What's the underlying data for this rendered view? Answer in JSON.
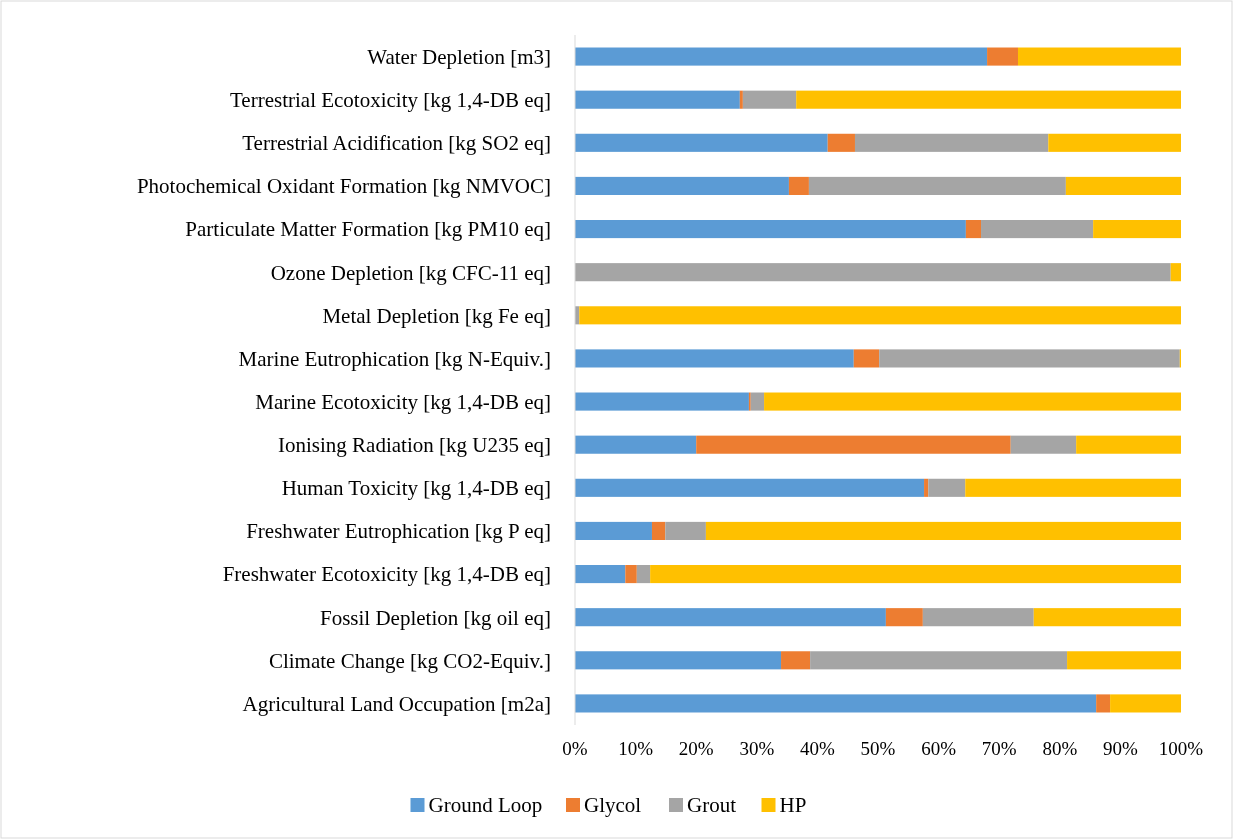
{
  "chart_data": {
    "type": "bar",
    "orientation": "horizontal",
    "stacked": true,
    "categories": [
      "Water Depletion [m3]",
      "Terrestrial Ecotoxicity [kg 1,4-DB eq]",
      "Terrestrial Acidification [kg SO2 eq]",
      "Photochemical Oxidant Formation [kg NMVOC]",
      "Particulate Matter Formation [kg PM10 eq]",
      "Ozone Depletion [kg CFC-11 eq]",
      "Metal Depletion [kg Fe eq]",
      "Marine Eutrophication [kg N-Equiv.]",
      "Marine Ecotoxicity [kg 1,4-DB eq]",
      "Ionising Radiation [kg U235 eq]",
      "Human Toxicity [kg 1,4-DB eq]",
      "Freshwater Eutrophication [kg P eq]",
      "Freshwater Ecotoxicity [kg 1,4-DB eq]",
      "Fossil Depletion [kg oil eq]",
      "Climate Change [kg CO2-Equiv.]",
      "Agricultural Land Occupation [m2a]"
    ],
    "series": [
      {
        "name": "Ground Loop",
        "color": "#5b9bd5",
        "values": [
          68.0,
          27.2,
          41.7,
          35.3,
          64.5,
          0,
          0,
          46.0,
          28.7,
          20.0,
          57.6,
          12.7,
          8.3,
          51.3,
          34.0,
          86.0
        ]
      },
      {
        "name": "Glycol",
        "color": "#ed7d31",
        "values": [
          5.1,
          0.5,
          4.5,
          3.3,
          2.5,
          0,
          0,
          4.2,
          0.3,
          51.9,
          0.7,
          2.2,
          1.9,
          6.1,
          4.8,
          2.3
        ]
      },
      {
        "name": "Grout",
        "color": "#a5a5a5",
        "values": [
          0,
          8.8,
          31.9,
          42.4,
          18.5,
          98.3,
          0.7,
          49.6,
          2.2,
          10.8,
          6.1,
          6.7,
          2.2,
          18.3,
          42.4,
          0
        ]
      },
      {
        "name": "HP",
        "color": "#ffc000",
        "values": [
          26.9,
          63.5,
          21.9,
          19.0,
          14.5,
          1.7,
          99.3,
          0.2,
          68.8,
          17.3,
          35.6,
          78.4,
          87.6,
          24.3,
          18.8,
          11.7
        ]
      }
    ],
    "xlim": [
      0,
      100
    ],
    "xticks": [
      {
        "value": 0,
        "label": "0%"
      },
      {
        "value": 10,
        "label": "10%"
      },
      {
        "value": 20,
        "label": "20%"
      },
      {
        "value": 30,
        "label": "30%"
      },
      {
        "value": 40,
        "label": "40%"
      },
      {
        "value": 50,
        "label": "50%"
      },
      {
        "value": 60,
        "label": "60%"
      },
      {
        "value": 70,
        "label": "70%"
      },
      {
        "value": 80,
        "label": "80%"
      },
      {
        "value": 90,
        "label": "90%"
      },
      {
        "value": 100,
        "label": "100%"
      }
    ],
    "legend": "bottom"
  }
}
